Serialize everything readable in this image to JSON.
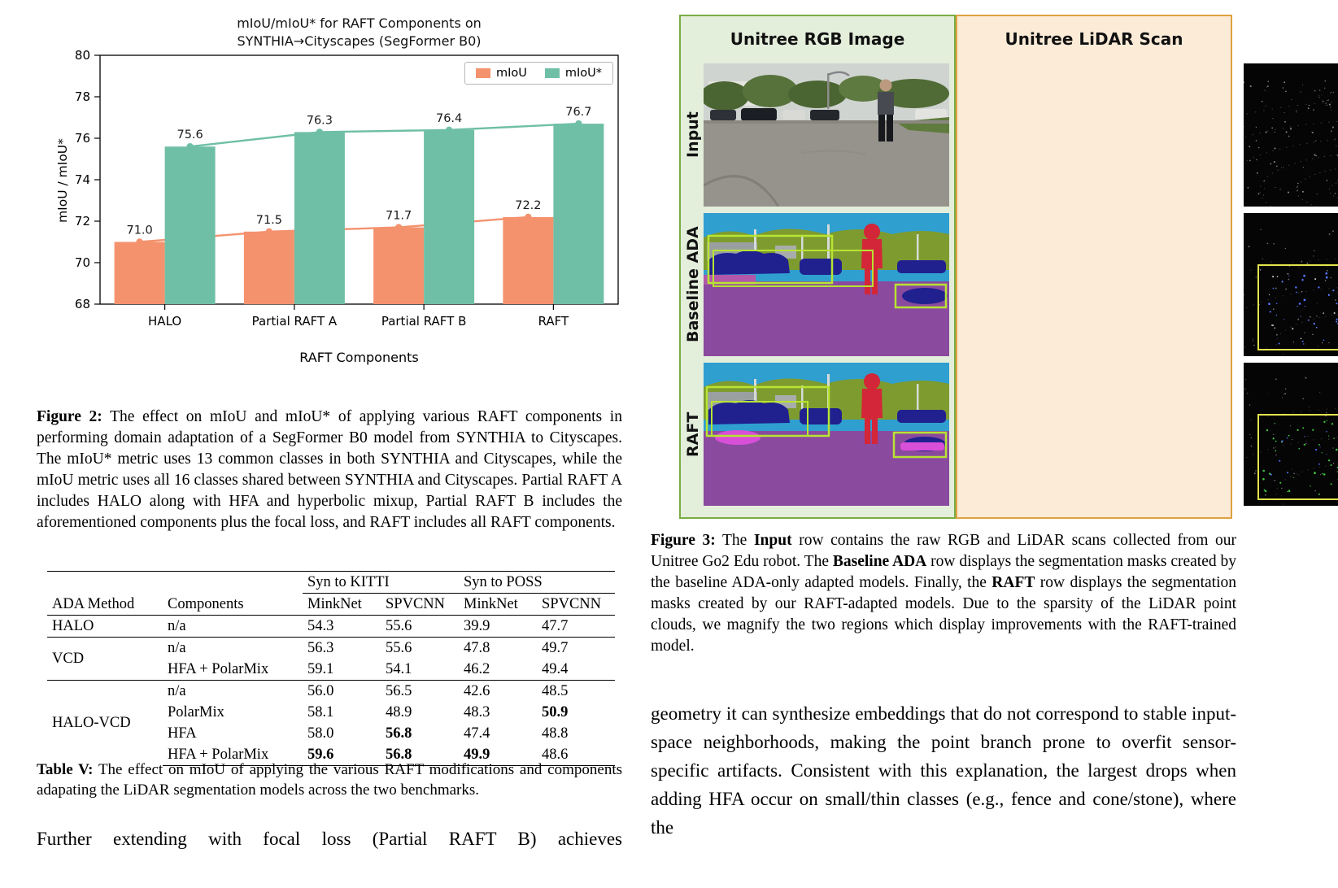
{
  "figure2": {
    "chart_data": {
      "type": "bar",
      "title_line1": "mIoU/mIoU* for RAFT Components on",
      "title_line2": "SYNTHIA→Cityscapes (SegFormer B0)",
      "categories": [
        "HALO",
        "Partial RAFT A",
        "Partial RAFT B",
        "RAFT"
      ],
      "series": [
        {
          "name": "mIoU",
          "color": "#f4926e",
          "values": [
            71.0,
            71.5,
            71.7,
            72.2
          ]
        },
        {
          "name": "mIoU*",
          "color": "#6fbfa6",
          "values": [
            75.6,
            76.3,
            76.4,
            76.7
          ]
        }
      ],
      "xlabel": "RAFT Components",
      "ylabel": "mIoU / mIoU*",
      "ylim": [
        68,
        80
      ],
      "yticks": [
        68,
        70,
        72,
        74,
        76,
        78,
        80
      ],
      "grid": false,
      "legend_position": "top-right"
    },
    "caption_segments": [
      {
        "t": "Figure 2:",
        "b": true
      },
      {
        "t": " The effect on mIoU and mIoU* of applying various RAFT components in performing domain adaptation of a SegFormer B0 model from SYNTHIA to Cityscapes. The mIoU* metric uses 13 common classes in both SYNTHIA and Cityscapes, while the mIoU metric uses all 16 classes shared between SYNTHIA and Cityscapes. Partial RAFT A includes HALO along with HFA and hyperbolic mixup, Partial RAFT B includes the aforementioned components plus the focal loss, and RAFT includes all RAFT components.",
        "b": false
      }
    ]
  },
  "tableV": {
    "span_headers": [
      {
        "label": "",
        "span": 2,
        "underline": false
      },
      {
        "label": "Syn to KITTI",
        "span": 2,
        "underline": true
      },
      {
        "label": "Syn to POSS",
        "span": 2,
        "underline": true
      }
    ],
    "col_headers": [
      "ADA Method",
      "Components",
      "MinkNet",
      "SPVCNN",
      "MinkNet",
      "SPVCNN"
    ],
    "groups": [
      {
        "method": "HALO",
        "rows": [
          {
            "components": "n/a",
            "values": [
              "54.3",
              "55.6",
              "39.9",
              "47.7"
            ],
            "bold": []
          }
        ]
      },
      {
        "method": "VCD",
        "rows": [
          {
            "components": "n/a",
            "values": [
              "56.3",
              "55.6",
              "47.8",
              "49.7"
            ],
            "bold": []
          },
          {
            "components": "HFA + PolarMix",
            "values": [
              "59.1",
              "54.1",
              "46.2",
              "49.4"
            ],
            "bold": []
          }
        ]
      },
      {
        "method": "HALO-VCD",
        "rows": [
          {
            "components": "n/a",
            "values": [
              "56.0",
              "56.5",
              "42.6",
              "48.5"
            ],
            "bold": []
          },
          {
            "components": "PolarMix",
            "values": [
              "58.1",
              "48.9",
              "48.3",
              "50.9"
            ],
            "bold": [
              3
            ]
          },
          {
            "components": "HFA",
            "values": [
              "58.0",
              "56.8",
              "47.4",
              "48.8"
            ],
            "bold": [
              1
            ]
          },
          {
            "components": "HFA + PolarMix",
            "values": [
              "59.6",
              "56.8",
              "49.9",
              "48.6"
            ],
            "bold": [
              0,
              1,
              2
            ]
          }
        ]
      }
    ],
    "caption_segments": [
      {
        "t": "Table V:",
        "b": true
      },
      {
        "t": " The effect on mIoU of applying the various RAFT modifications and components adapating the LiDAR segmentation models across the two benchmarks.",
        "b": false
      }
    ]
  },
  "body_left": "Further extending with focal loss (Partial RAFT B) achieves",
  "figure3": {
    "header_rgb": "Unitree RGB Image",
    "header_lidar": "Unitree LiDAR Scan",
    "row_labels": [
      "Input",
      "Baseline ADA",
      "RAFT"
    ],
    "caption_segments": [
      {
        "t": "Figure 3:",
        "b": true
      },
      {
        "t": " The ",
        "b": false
      },
      {
        "t": "Input",
        "b": true
      },
      {
        "t": " row contains the raw RGB and LiDAR scans collected from our Unitree Go2 Edu robot. The ",
        "b": false
      },
      {
        "t": "Baseline ADA",
        "b": true
      },
      {
        "t": " row displays the segmentation masks created by the baseline ADA-only adapted models. Finally, the ",
        "b": false
      },
      {
        "t": "RAFT",
        "b": true
      },
      {
        "t": " row displays the segmentation masks created by our RAFT-adapted models. Due to the sparsity of the LiDAR point clouds, we magnify the two regions which display improvements with the RAFT-trained model.",
        "b": false
      }
    ]
  },
  "body_right": "geometry it can synthesize embeddings that do not correspond to stable input-space neighborhoods, making the point branch prone to overfit sensor-specific artifacts. Consistent with this explanation, the largest drops when adding HFA occur on small/thin classes (e.g., fence and cone/stone), where the"
}
